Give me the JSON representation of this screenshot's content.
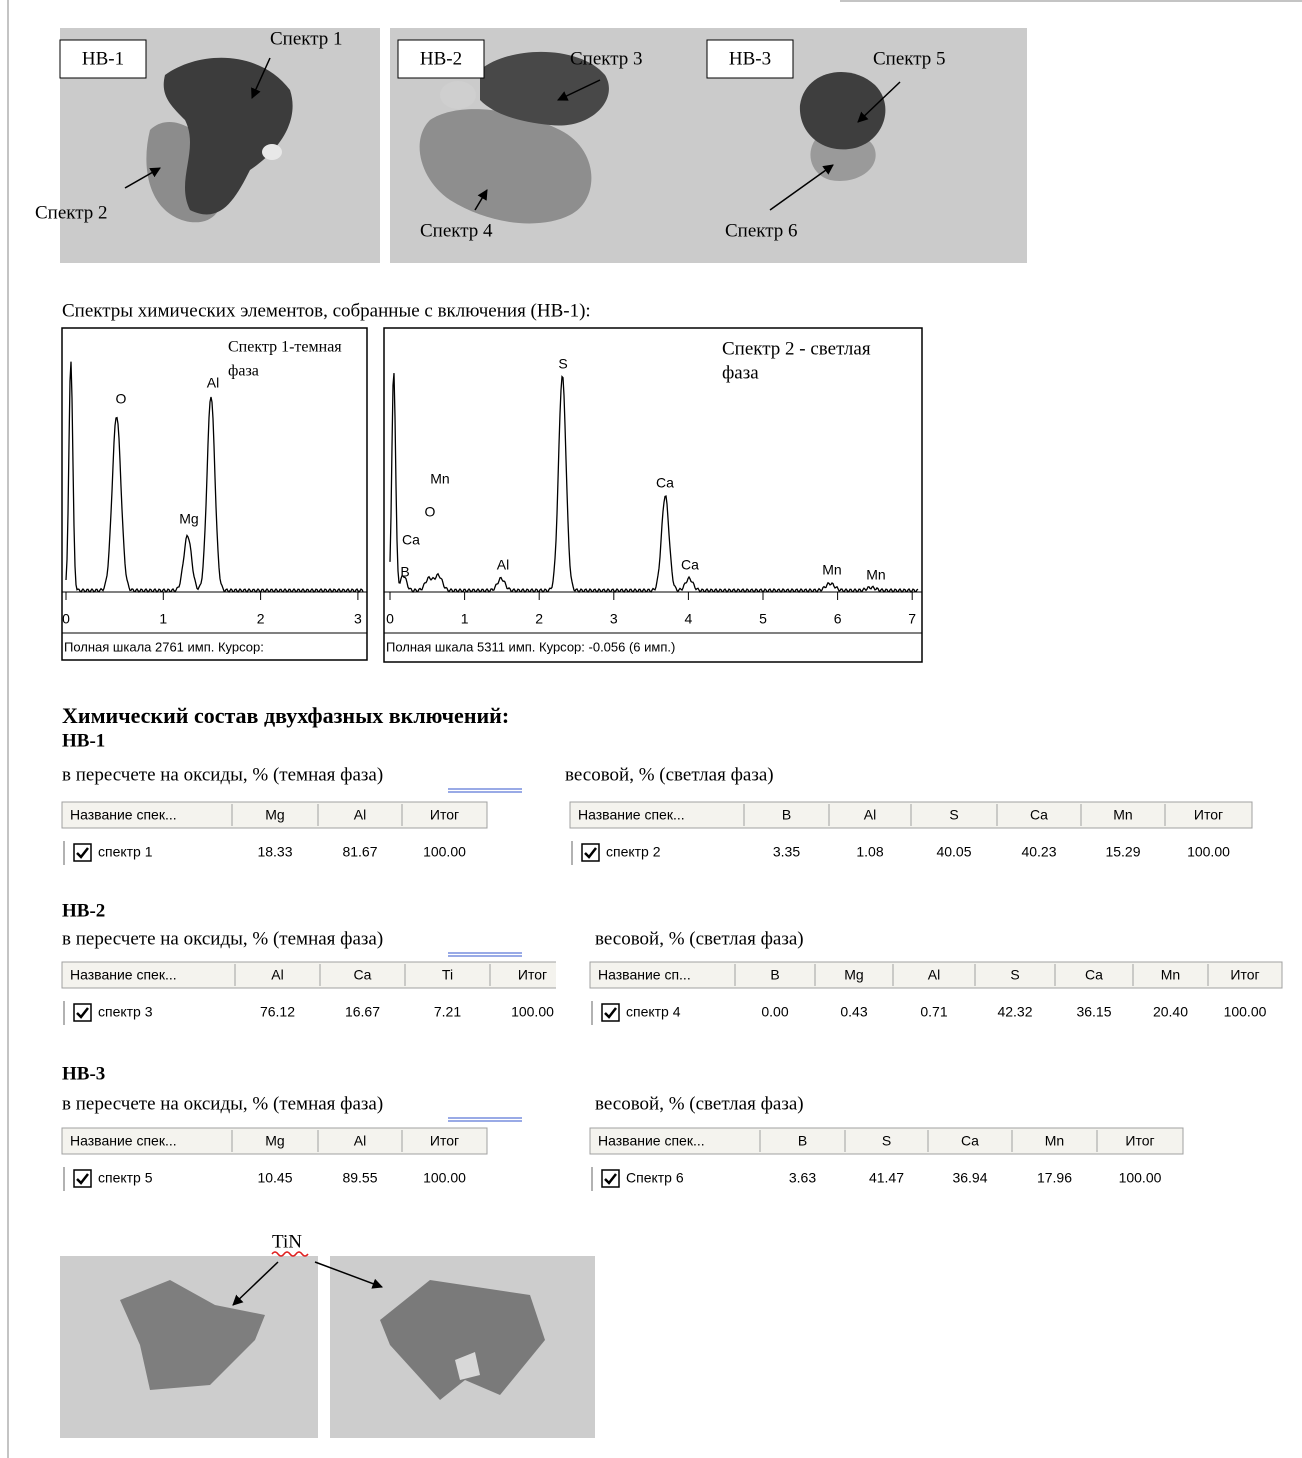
{
  "micrographs": [
    {
      "label": "НВ-1",
      "annotations": [
        "Спектр 1",
        "Спектр 2"
      ]
    },
    {
      "label": "НВ-2",
      "annotations": [
        "Спектр 3",
        "Спектр 4"
      ]
    },
    {
      "label": "НВ-3",
      "annotations": [
        "Спектр 5",
        "Спектр 6"
      ]
    }
  ],
  "spectra_caption": "Спектры химических элементов, собранные с включения (НВ-1):",
  "spectra": [
    {
      "title": [
        "Спектр 1-темная",
        "фаза"
      ],
      "peaks": [
        "O",
        "Al",
        "Mg"
      ],
      "xticks": [
        "0",
        "1",
        "2",
        "3"
      ],
      "footer": "Полная шкала 2761 имп. Курсор:"
    },
    {
      "title": [
        "Спектр 2 - светлая",
        "фаза"
      ],
      "peaks": [
        "S",
        "Mn",
        "O",
        "Ca",
        "B",
        "Al",
        "Ca",
        "Ca",
        "Mn",
        "Mn"
      ],
      "xticks": [
        "0",
        "1",
        "2",
        "3",
        "4",
        "5",
        "6",
        "7"
      ],
      "footer": "Полная шкала 5311 имп. Курсор: -0.056  (6 имп.)"
    }
  ],
  "composition": {
    "title": "Химический состав двухфазных включений:",
    "groups": [
      {
        "name": "НВ-1",
        "left": {
          "caption": "в пересчете на оксиды, % (темная фаза)",
          "columns": [
            "Название спек...",
            "Mg",
            "Al",
            "Итог"
          ],
          "row": [
            "спектр 1",
            "18.33",
            "81.67",
            "100.00"
          ]
        },
        "right": {
          "caption": "весовой, % (светлая фаза)",
          "columns": [
            "Название спек...",
            "B",
            "Al",
            "S",
            "Ca",
            "Mn",
            "Итог"
          ],
          "row": [
            "спектр 2",
            "3.35",
            "1.08",
            "40.05",
            "40.23",
            "15.29",
            "100.00"
          ]
        }
      },
      {
        "name": "НВ-2",
        "left": {
          "caption": "в пересчете на оксиды, % (темная фаза)",
          "columns": [
            "Название спек...",
            "Al",
            "Ca",
            "Ti",
            "Итог"
          ],
          "row": [
            "спектр 3",
            "76.12",
            "16.67",
            "7.21",
            "100.00"
          ]
        },
        "right": {
          "caption": "весовой, % (светлая фаза)",
          "columns": [
            "Название сп...",
            "B",
            "Mg",
            "Al",
            "S",
            "Ca",
            "Mn",
            "Итог"
          ],
          "row": [
            "спектр 4",
            "0.00",
            "0.43",
            "0.71",
            "42.32",
            "36.15",
            "20.40",
            "100.00"
          ]
        }
      },
      {
        "name": "НВ-3",
        "left": {
          "caption": "в пересчете на оксиды, % (темная фаза)",
          "columns": [
            "Название спек...",
            "Mg",
            "Al",
            "Итог"
          ],
          "row": [
            "спектр 5",
            "10.45",
            "89.55",
            "100.00"
          ]
        },
        "right": {
          "caption": "весовой, % (светлая фаза)",
          "columns": [
            "Название спек...",
            "B",
            "S",
            "Ca",
            "Mn",
            "Итог"
          ],
          "row": [
            "Спектр 6",
            "3.63",
            "41.47",
            "36.94",
            "17.96",
            "100.00"
          ]
        }
      }
    ]
  },
  "tin_label": "TiN"
}
